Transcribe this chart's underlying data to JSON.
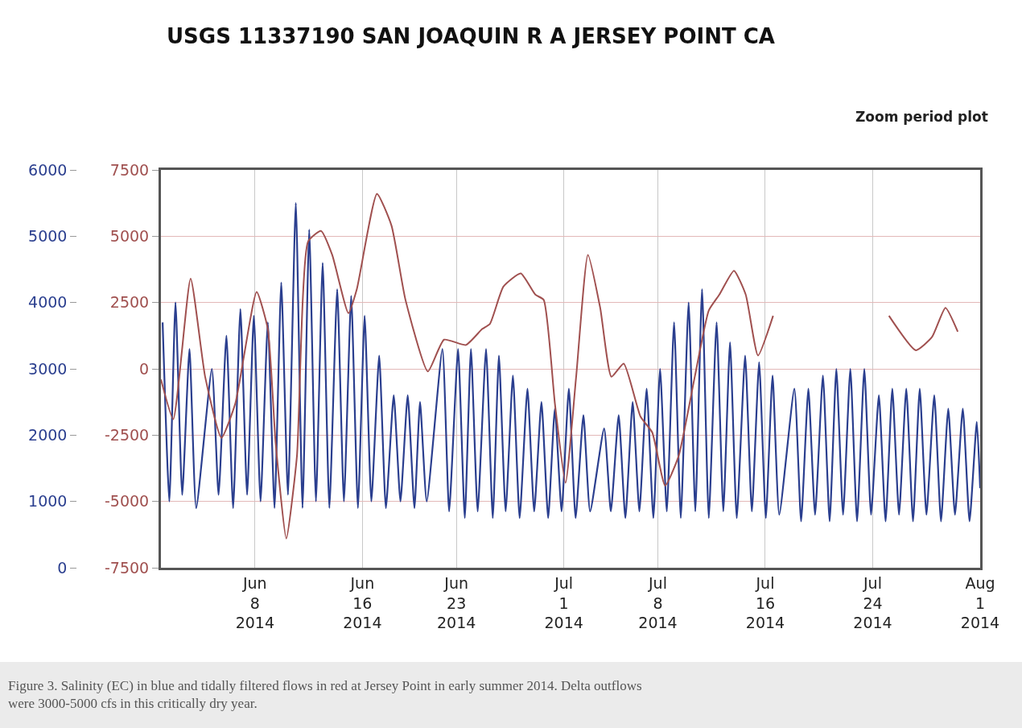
{
  "chart_data": {
    "type": "line",
    "title": "USGS 11337190 SAN JOAQUIN R A JERSEY POINT CA",
    "subtitle": "Zoom period plot",
    "annotations": [
      "Figure 3. Salinity (EC) in blue and tidally filtered flows in red at Jersey Point in early summer 2014. Delta outflows were 3000-5000 cfs in this critically dry year."
    ],
    "xlim": [
      "2014-06-01",
      "2014-08-01"
    ],
    "xticks": [
      {
        "value": "2014-06-08",
        "label": "Jun 8 2014"
      },
      {
        "value": "2014-06-16",
        "label": "Jun 16 2014"
      },
      {
        "value": "2014-06-23",
        "label": "Jun 23 2014"
      },
      {
        "value": "2014-07-01",
        "label": "Jul 1 2014"
      },
      {
        "value": "2014-07-08",
        "label": "Jul 8 2014"
      },
      {
        "value": "2014-07-16",
        "label": "Jul 16 2014"
      },
      {
        "value": "2014-07-24",
        "label": "Jul 24 2014"
      },
      {
        "value": "2014-08-01",
        "label": "Aug 1 2014"
      }
    ],
    "ylim": [
      0,
      6000
    ],
    "yticks": [
      0,
      1000,
      2000,
      3000,
      4000,
      5000,
      6000
    ],
    "y2lim": [
      -7500,
      7500
    ],
    "y2ticks": [
      -7500,
      -5000,
      -2500,
      0,
      2500,
      5000,
      7500
    ],
    "grid": true,
    "series": [
      {
        "color": "#2b3f8f",
        "x": [
          "2014-06-01T03:00",
          "2014-06-01T15:00",
          "2014-06-02T02:00",
          "2014-06-02T14:00",
          "2014-06-03T03:00",
          "2014-06-03T15:00",
          "2014-06-04T19:00",
          "2014-06-05T07:00",
          "2014-06-05T21:00",
          "2014-06-06T09:00",
          "2014-06-06T22:00",
          "2014-06-07T10:00",
          "2014-06-07T22:00",
          "2014-06-08T10:00",
          "2014-06-08T23:00",
          "2014-06-09T11:00",
          "2014-06-09T23:00",
          "2014-06-10T11:00",
          "2014-06-11T01:00",
          "2014-06-11T13:00",
          "2014-06-12T01:00",
          "2014-06-12T13:00",
          "2014-06-13T01:00",
          "2014-06-13T13:00",
          "2014-06-14T03:00",
          "2014-06-14T15:00",
          "2014-06-15T04:00",
          "2014-06-15T16:00",
          "2014-06-16T04:00",
          "2014-06-16T16:00",
          "2014-06-17T06:00",
          "2014-06-17T18:00",
          "2014-06-18T08:00",
          "2014-06-18T20:00",
          "2014-06-19T09:00",
          "2014-06-19T21:00",
          "2014-06-20T07:00",
          "2014-06-20T19:00",
          "2014-06-21T23:00",
          "2014-06-22T11:00",
          "2014-06-23T03:00",
          "2014-06-23T15:00",
          "2014-06-24T02:00",
          "2014-06-24T14:00",
          "2014-06-25T05:00",
          "2014-06-25T17:00",
          "2014-06-26T04:00",
          "2014-06-26T16:00",
          "2014-06-27T05:00",
          "2014-06-27T17:00",
          "2014-06-28T07:00",
          "2014-06-28T19:00",
          "2014-06-29T08:00",
          "2014-06-29T20:00",
          "2014-06-30T08:00",
          "2014-06-30T20:00",
          "2014-07-01T09:00",
          "2014-07-01T21:00",
          "2014-07-02T11:00",
          "2014-07-02T23:00",
          "2014-07-04T00:00",
          "2014-07-04T12:00",
          "2014-07-05T02:00",
          "2014-07-05T14:00",
          "2014-07-06T03:00",
          "2014-07-06T15:00",
          "2014-07-07T04:00",
          "2014-07-07T16:00",
          "2014-07-08T04:00",
          "2014-07-08T16:00",
          "2014-07-09T05:00",
          "2014-07-09T17:00",
          "2014-07-10T07:00",
          "2014-07-10T19:00",
          "2014-07-11T07:00",
          "2014-07-11T19:00",
          "2014-07-12T09:00",
          "2014-07-12T21:00",
          "2014-07-13T09:00",
          "2014-07-13T21:00",
          "2014-07-14T12:00",
          "2014-07-15T00:00",
          "2014-07-15T13:00",
          "2014-07-16T01:00",
          "2014-07-16T13:00",
          "2014-07-17T01:00",
          "2014-07-18T04:00",
          "2014-07-18T16:00",
          "2014-07-19T05:00",
          "2014-07-19T17:00",
          "2014-07-20T07:00",
          "2014-07-20T19:00",
          "2014-07-21T07:00",
          "2014-07-21T19:00",
          "2014-07-22T08:00",
          "2014-07-22T20:00",
          "2014-07-23T09:00",
          "2014-07-23T21:00",
          "2014-07-24T11:00",
          "2014-07-24T23:00",
          "2014-07-25T11:00",
          "2014-07-25T23:00",
          "2014-07-26T12:00",
          "2014-07-27T00:00",
          "2014-07-27T12:00",
          "2014-07-28T00:00",
          "2014-07-28T14:00",
          "2014-07-29T02:00",
          "2014-07-29T15:00",
          "2014-07-30T03:00",
          "2014-07-30T17:00",
          "2014-07-31T05:00",
          "2014-07-31T18:00",
          "2014-08-01T00:00"
        ],
        "values": [
          3700,
          1000,
          4000,
          1100,
          3300,
          900,
          3000,
          1100,
          3500,
          900,
          3900,
          1100,
          3800,
          1000,
          3700,
          900,
          4300,
          1100,
          5500,
          900,
          5100,
          1000,
          4600,
          900,
          4200,
          1000,
          4100,
          900,
          3800,
          1000,
          3200,
          900,
          2600,
          1000,
          2600,
          900,
          2500,
          1000,
          3300,
          850,
          3300,
          750,
          3300,
          850,
          3300,
          750,
          3200,
          850,
          2900,
          750,
          2700,
          850,
          2500,
          750,
          2400,
          850,
          2700,
          750,
          2300,
          850,
          2100,
          850,
          2300,
          750,
          2500,
          850,
          2700,
          750,
          3000,
          850,
          3700,
          750,
          4000,
          850,
          4200,
          750,
          3700,
          850,
          3400,
          750,
          3200,
          850,
          3100,
          750,
          2900,
          800,
          2700,
          700,
          2700,
          800,
          2900,
          700,
          3000,
          800,
          3000,
          700,
          3000,
          800,
          2600,
          700,
          2700,
          800,
          2700,
          700,
          2700,
          800,
          2600,
          700,
          2400,
          800,
          2400,
          700,
          2200,
          1200
        ]
      },
      {
        "color": "#a0504f",
        "axis": "y2",
        "x": [
          "2014-06-01T00:00",
          "2014-06-01T22:00",
          "2014-06-03T05:00",
          "2014-06-04T07:00",
          "2014-06-05T12:00",
          "2014-06-06T13:00",
          "2014-06-08T03:00",
          "2014-06-08T23:00",
          "2014-06-09T13:00",
          "2014-06-10T08:00",
          "2014-06-11T03:00",
          "2014-06-11T23:00",
          "2014-06-12T22:00",
          "2014-06-13T18:00",
          "2014-06-14T23:00",
          "2014-06-15T14:00",
          "2014-06-17T02:00",
          "2014-06-18T04:00",
          "2014-06-19T05:00",
          "2014-06-20T21:00",
          "2014-06-22T02:00",
          "2014-06-23T17:00",
          "2014-06-24T22:00",
          "2014-06-25T12:00",
          "2014-06-26T12:00",
          "2014-06-27T19:00",
          "2014-06-28T21:00",
          "2014-06-29T12:00",
          "2014-06-30T08:00",
          "2014-07-01T03:00",
          "2014-07-01T22:00",
          "2014-07-02T19:00",
          "2014-07-03T17:00",
          "2014-07-04T13:00",
          "2014-07-05T11:00",
          "2014-07-06T17:00",
          "2014-07-07T14:00",
          "2014-07-08T13:00",
          "2014-07-09T13:00",
          "2014-07-10T18:00",
          "2014-07-11T19:00",
          "2014-07-12T14:00",
          "2014-07-13T16:00",
          "2014-07-14T13:00",
          "2014-07-15T11:00",
          "2014-07-16T14:00",
          "2014-07-20T00:00",
          "2014-07-25T05:00",
          "2014-07-27T05:00",
          "2014-07-28T10:00",
          "2014-07-29T10:00",
          "2014-07-30T08:00"
        ],
        "values": [
          -400,
          -1900,
          3400,
          -300,
          -2600,
          -1300,
          2900,
          1500,
          -2800,
          -6400,
          -3300,
          4800,
          5200,
          4300,
          2100,
          3000,
          6600,
          5400,
          2600,
          -100,
          1100,
          900,
          1500,
          1700,
          3100,
          3600,
          2800,
          2600,
          -1300,
          -4300,
          -300,
          4300,
          2300,
          -300,
          200,
          -1800,
          -2400,
          -4400,
          -3300,
          -300,
          2200,
          2800,
          3700,
          2800,
          500,
          2000,
          null,
          2000,
          700,
          1200,
          2300,
          1400
        ]
      }
    ]
  }
}
